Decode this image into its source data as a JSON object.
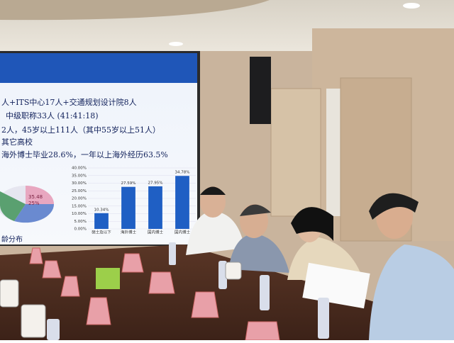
{
  "slide": {
    "lines": [
      "人+ITS中心17人+交通规划设计院8人",
      "中级职称33人 (41:41:18)",
      "2人，45岁以上111人（其中55岁以上51人）",
      "其它高校",
      "海外博士毕业28.6%，一年以上海外经历63.5%"
    ],
    "chart": {
      "type": "bar",
      "ylim": [
        0,
        40
      ],
      "yticks": [
        {
          "value": 0,
          "label": "0.00%"
        },
        {
          "value": 5,
          "label": "5.00%"
        },
        {
          "value": 10,
          "label": "10.00%"
        },
        {
          "value": 15,
          "label": "15.00%"
        },
        {
          "value": 20,
          "label": "20.00%"
        },
        {
          "value": 25,
          "label": "25.00%"
        },
        {
          "value": 30,
          "label": "30.00%"
        },
        {
          "value": 35,
          "label": "35.00%"
        },
        {
          "value": 40,
          "label": "40.00%"
        }
      ],
      "categories": [
        "硕士及以下",
        "海外博士",
        "国内博士",
        "国内博士"
      ],
      "values": [
        10.34,
        27.59,
        27.95,
        34.78
      ],
      "value_labels": [
        "10.34%",
        "27.59%",
        "27.95%",
        "34.78%"
      ],
      "color": "#1f5fc4"
    },
    "pie_labels": [
      "35.48",
      "25%"
    ],
    "footer": "龄分布"
  }
}
